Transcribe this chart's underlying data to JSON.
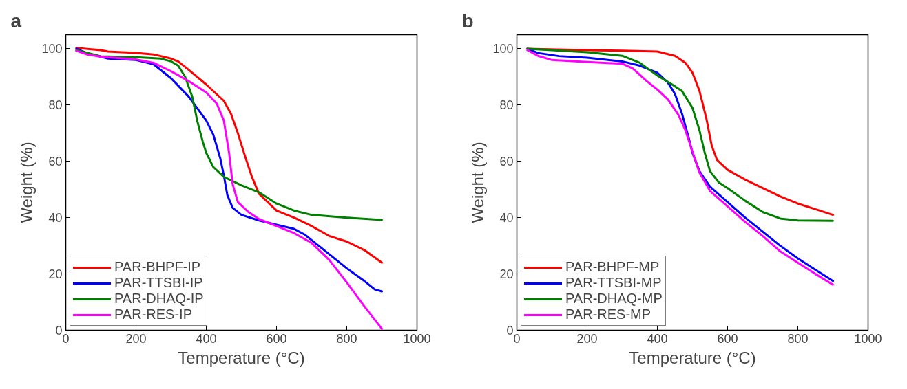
{
  "chart_data": [
    {
      "type": "line",
      "title": "a",
      "xlabel": "Temperature (°C)",
      "ylabel": "Weight (%)",
      "xlim": [
        0,
        1000
      ],
      "ylim": [
        0,
        105
      ],
      "xticks": [
        0,
        200,
        400,
        600,
        800,
        1000
      ],
      "yticks": [
        0,
        20,
        40,
        60,
        80,
        100
      ],
      "grid": false,
      "legend": "bottom left",
      "line_style": "solid",
      "series": [
        {
          "name": "PAR-BHPF-IP",
          "color": "#ff0000",
          "x": [
            30,
            100,
            120,
            200,
            250,
            300,
            320,
            350,
            400,
            450,
            470,
            490,
            510,
            530,
            550,
            575,
            600,
            650,
            700,
            750,
            800,
            850,
            900
          ],
          "values": [
            100.3,
            99.5,
            99,
            98.5,
            98,
            96.5,
            95.5,
            92.5,
            87.3,
            81.5,
            77,
            70,
            62,
            54.5,
            48.5,
            45.5,
            42.5,
            40,
            37,
            33.5,
            31.5,
            28.5,
            24
          ]
        },
        {
          "name": "PAR-TTSBI-IP",
          "color": "#0000ff",
          "x": [
            30,
            60,
            120,
            200,
            250,
            300,
            350,
            400,
            420,
            440,
            450,
            460,
            475,
            500,
            550,
            600,
            650,
            680,
            700,
            750,
            800,
            850,
            880,
            900
          ],
          "values": [
            100,
            98.5,
            96.5,
            96,
            94.5,
            89.5,
            83,
            74.5,
            69.5,
            61,
            55,
            48,
            43.5,
            41,
            39,
            37.5,
            36,
            34,
            32,
            27,
            22,
            17.5,
            14.5,
            13.8
          ]
        },
        {
          "name": "PAR-DHAQ-IP",
          "color": "#008000",
          "x": [
            30,
            100,
            200,
            270,
            300,
            320,
            340,
            360,
            375,
            390,
            400,
            420,
            450,
            500,
            550,
            600,
            650,
            700,
            800,
            900
          ],
          "values": [
            99.5,
            97.3,
            97,
            96.5,
            95.5,
            94,
            90,
            83,
            74,
            67,
            63,
            58,
            54.5,
            51.5,
            49,
            45,
            42.5,
            41,
            40,
            39.2
          ]
        },
        {
          "name": "PAR-RES-IP",
          "color": "#ff00ff",
          "x": [
            30,
            60,
            100,
            200,
            250,
            300,
            350,
            400,
            430,
            450,
            465,
            475,
            490,
            520,
            550,
            600,
            650,
            700,
            750,
            800,
            850,
            900
          ],
          "values": [
            99.3,
            98,
            97.2,
            96.2,
            95,
            92,
            88.5,
            84.5,
            80.5,
            74.5,
            63,
            52,
            45.5,
            42,
            39.5,
            37,
            34.5,
            31,
            25,
            17,
            8.5,
            0.5
          ]
        }
      ]
    },
    {
      "type": "line",
      "title": "b",
      "xlabel": "Temperature (°C)",
      "ylabel": "Weight (%)",
      "xlim": [
        0,
        1000
      ],
      "ylim": [
        0,
        105
      ],
      "xticks": [
        0,
        200,
        400,
        600,
        800,
        1000
      ],
      "yticks": [
        0,
        20,
        40,
        60,
        80,
        100
      ],
      "grid": false,
      "legend": "bottom left",
      "line_style": "solid",
      "series": [
        {
          "name": "PAR-BHPF-MP",
          "color": "#ff0000",
          "x": [
            30,
            200,
            300,
            400,
            450,
            480,
            500,
            520,
            540,
            555,
            570,
            600,
            650,
            700,
            750,
            800,
            850,
            900
          ],
          "values": [
            100,
            99.5,
            99.3,
            99,
            97.5,
            95,
            91.5,
            85,
            75,
            65.5,
            60.5,
            57,
            53.5,
            50.5,
            47.5,
            45,
            43,
            41
          ]
        },
        {
          "name": "PAR-TTSBI-MP",
          "color": "#0000ff",
          "x": [
            30,
            60,
            120,
            200,
            300,
            350,
            400,
            430,
            450,
            470,
            490,
            500,
            520,
            550,
            600,
            650,
            700,
            750,
            800,
            850,
            900
          ],
          "values": [
            100,
            98.5,
            97.4,
            96.8,
            95.5,
            94,
            91.5,
            88,
            84,
            77,
            68,
            63,
            56.5,
            51,
            45.5,
            40,
            35,
            30,
            25.5,
            21.5,
            17.5
          ]
        },
        {
          "name": "PAR-DHAQ-MP",
          "color": "#008000",
          "x": [
            30,
            100,
            200,
            300,
            350,
            400,
            440,
            470,
            500,
            520,
            535,
            550,
            575,
            600,
            650,
            700,
            750,
            800,
            900
          ],
          "values": [
            100,
            99.5,
            98.8,
            97.5,
            95,
            90.5,
            87.5,
            85,
            79,
            71,
            63,
            56.5,
            52.5,
            50.5,
            46,
            42,
            39.7,
            39,
            38.9
          ]
        },
        {
          "name": "PAR-RES-MP",
          "color": "#ff00ff",
          "x": [
            30,
            60,
            100,
            200,
            300,
            330,
            370,
            400,
            430,
            460,
            480,
            500,
            520,
            550,
            600,
            650,
            700,
            750,
            800,
            850,
            900
          ],
          "values": [
            99.5,
            97.5,
            96,
            95.3,
            94.7,
            93,
            88.5,
            85.5,
            82,
            76.5,
            71,
            63.5,
            56,
            49.5,
            44,
            38.5,
            33.5,
            28,
            24,
            20,
            16.2
          ]
        }
      ]
    }
  ]
}
